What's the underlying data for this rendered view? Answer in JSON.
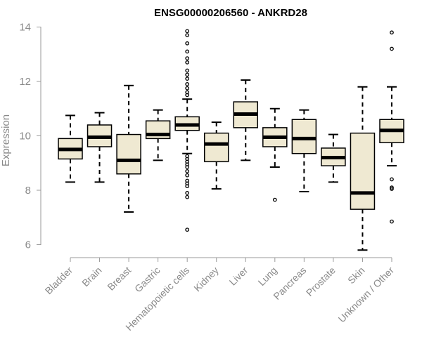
{
  "chart_data": {
    "type": "box",
    "title": "ENSG00000206560 - ANKRD28",
    "xlabel": "",
    "ylabel": "Expression",
    "ylim": [
      5.7,
      14.1
    ],
    "yticks": [
      6,
      8,
      10,
      12,
      14
    ],
    "box_fill": "#efe9d2",
    "categories": [
      "Bladder",
      "Brain",
      "Breast",
      "Gastric",
      "Hematopoietic cells",
      "Kidney",
      "Liver",
      "Lung",
      "Pancreas",
      "Prostate",
      "Skin",
      "Unknown / Other"
    ],
    "boxes": [
      {
        "min": 8.3,
        "q1": 9.15,
        "median": 9.5,
        "q3": 9.9,
        "max": 10.75,
        "outliers": []
      },
      {
        "min": 8.3,
        "q1": 9.6,
        "median": 9.95,
        "q3": 10.4,
        "max": 10.85,
        "outliers": []
      },
      {
        "min": 7.2,
        "q1": 8.6,
        "median": 9.1,
        "q3": 10.05,
        "max": 11.85,
        "outliers": []
      },
      {
        "min": 9.1,
        "q1": 9.9,
        "median": 10.05,
        "q3": 10.55,
        "max": 10.95,
        "outliers": []
      },
      {
        "min": 9.35,
        "q1": 10.2,
        "median": 10.4,
        "q3": 10.7,
        "max": 11.35,
        "outliers": [
          13.85,
          13.7,
          13.4,
          13.1,
          12.85,
          12.7,
          12.4,
          12.25,
          12.1,
          11.9,
          11.75,
          11.6,
          11.5,
          9.25,
          9.15,
          9.05,
          8.95,
          8.85,
          8.7,
          8.55,
          8.35,
          8.25,
          8.15,
          7.9,
          7.75,
          6.55
        ]
      },
      {
        "min": 8.05,
        "q1": 9.05,
        "median": 9.7,
        "q3": 10.1,
        "max": 10.5,
        "outliers": []
      },
      {
        "min": 9.1,
        "q1": 10.3,
        "median": 10.8,
        "q3": 11.25,
        "max": 12.05,
        "outliers": []
      },
      {
        "min": 8.85,
        "q1": 9.6,
        "median": 9.95,
        "q3": 10.3,
        "max": 11.0,
        "outliers": [
          7.65
        ]
      },
      {
        "min": 7.95,
        "q1": 9.35,
        "median": 9.9,
        "q3": 10.6,
        "max": 10.95,
        "outliers": []
      },
      {
        "min": 8.3,
        "q1": 8.9,
        "median": 9.2,
        "q3": 9.55,
        "max": 10.05,
        "outliers": []
      },
      {
        "min": 5.8,
        "q1": 7.3,
        "median": 7.9,
        "q3": 10.1,
        "max": 11.8,
        "outliers": []
      },
      {
        "min": 8.9,
        "q1": 9.75,
        "median": 10.2,
        "q3": 10.6,
        "max": 11.8,
        "outliers": [
          13.8,
          13.2,
          8.4,
          8.1,
          8.05,
          6.85
        ]
      }
    ]
  }
}
